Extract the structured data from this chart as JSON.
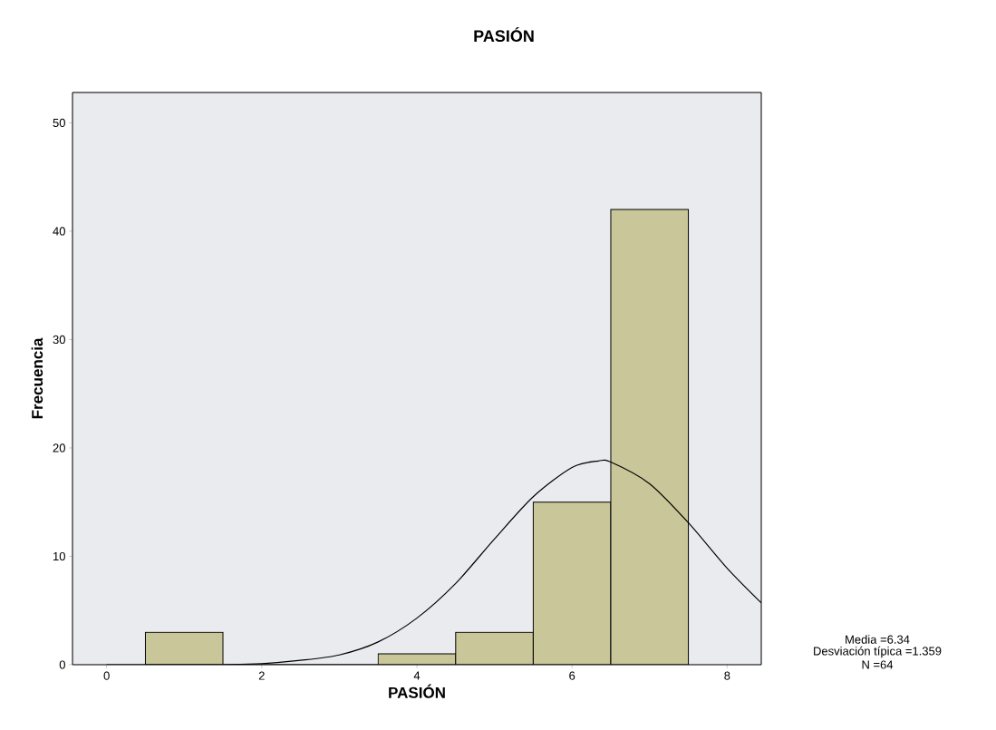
{
  "chart_data": {
    "type": "histogram",
    "title": "PASIÓN",
    "xlabel": "PASIÓN",
    "ylabel": "Frecuencia",
    "bins": [
      0.5,
      1.5,
      2.5,
      3.5,
      4.5,
      5.5,
      6.5,
      7.5
    ],
    "values": [
      3,
      0,
      0,
      1,
      3,
      15,
      42
    ],
    "color": "#c9c799",
    "series": [
      {
        "type": "line",
        "color": "#000000",
        "x": [
          0,
          1,
          1.5,
          2,
          2.5,
          3,
          3.5,
          4,
          4.5,
          5,
          5.5,
          6,
          6.34,
          6.5,
          7,
          7.5,
          8,
          8.44
        ],
        "values": [
          0,
          0,
          0,
          0.1,
          0.4,
          0.9,
          2.1,
          4.3,
          7.5,
          11.6,
          15.5,
          18.2,
          18.8,
          18.7,
          16.7,
          13.1,
          8.9,
          5.7
        ]
      }
    ],
    "xlim": [
      -0.44,
      8.44
    ],
    "ylim": [
      0,
      52.8
    ],
    "xticks": [
      0,
      2,
      4,
      6,
      8
    ],
    "yticks": [
      0,
      10,
      20,
      30,
      40,
      50
    ],
    "annotations": [
      "Media =6.34",
      "Desviación típica =1.359",
      "N =64"
    ]
  }
}
